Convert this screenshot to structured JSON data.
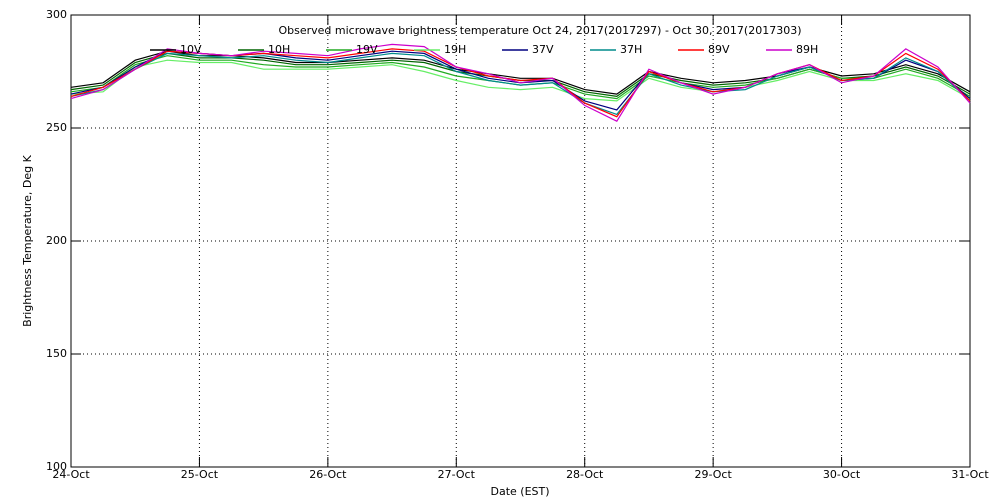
{
  "chart_data": {
    "type": "line",
    "title": "Observed microwave brightness temperature Oct 24, 2017(2017297) - Oct 30, 2017(2017303)",
    "x_label": "Date (EST)",
    "y_label": "Brightness Temperature, Deg K",
    "x": [
      0,
      0.25,
      0.5,
      0.75,
      1,
      1.25,
      1.5,
      1.75,
      2,
      2.25,
      2.5,
      2.75,
      3,
      3.25,
      3.5,
      3.75,
      4,
      4.25,
      4.5,
      4.75,
      5,
      5.25,
      5.5,
      5.75,
      6,
      6.25,
      6.5,
      6.75,
      7
    ],
    "xlim": [
      0,
      7
    ],
    "xticks": [
      {
        "value": 0,
        "label": "24-Oct"
      },
      {
        "value": 1,
        "label": "25-Oct"
      },
      {
        "value": 2,
        "label": "26-Oct"
      },
      {
        "value": 3,
        "label": "27-Oct"
      },
      {
        "value": 4,
        "label": "28-Oct"
      },
      {
        "value": 5,
        "label": "29-Oct"
      },
      {
        "value": 6,
        "label": "30-Oct"
      },
      {
        "value": 7,
        "label": "31-Oct"
      }
    ],
    "ylim": [
      100,
      300
    ],
    "yticks": [
      100,
      150,
      200,
      250,
      300
    ],
    "grid": true,
    "series": [
      {
        "name": "10V",
        "color": "#000000",
        "values": [
          268,
          270,
          280,
          284,
          282,
          282,
          281,
          279,
          279,
          280,
          281,
          280,
          276,
          274,
          272,
          272,
          267,
          265,
          275,
          272,
          270,
          271,
          273,
          277,
          273,
          274,
          278,
          274,
          266
        ]
      },
      {
        "name": "10H",
        "color": "#006400",
        "values": [
          267,
          269,
          279,
          283,
          281,
          281,
          280,
          278,
          278,
          279,
          280,
          279,
          275,
          273,
          271,
          271,
          266,
          264,
          274,
          271,
          269,
          270,
          272,
          276,
          272,
          273,
          277,
          273,
          265
        ]
      },
      {
        "name": "19V",
        "color": "#22aa22",
        "values": [
          266,
          268,
          278,
          282,
          280,
          280,
          278,
          277,
          277,
          278,
          279,
          277,
          273,
          271,
          269,
          270,
          265,
          263,
          273,
          270,
          268,
          269,
          272,
          276,
          272,
          272,
          276,
          272,
          264
        ]
      },
      {
        "name": "19H",
        "color": "#66ee66",
        "values": [
          265,
          266,
          277,
          280,
          279,
          279,
          276,
          276,
          276,
          277,
          278,
          275,
          271,
          268,
          267,
          268,
          263,
          262,
          272,
          268,
          266,
          268,
          271,
          275,
          271,
          271,
          274,
          271,
          263
        ]
      },
      {
        "name": "37V",
        "color": "#000080",
        "values": [
          265,
          268,
          277,
          284,
          283,
          282,
          283,
          281,
          280,
          282,
          284,
          283,
          276,
          272,
          270,
          271,
          262,
          258,
          275,
          270,
          267,
          268,
          274,
          277,
          271,
          272,
          280,
          275,
          263
        ]
      },
      {
        "name": "37H",
        "color": "#008b8b",
        "values": [
          264,
          267,
          276,
          283,
          282,
          281,
          282,
          280,
          279,
          281,
          283,
          282,
          275,
          271,
          269,
          270,
          261,
          256,
          274,
          269,
          266,
          267,
          273,
          277,
          271,
          272,
          281,
          275,
          262
        ]
      },
      {
        "name": "89V",
        "color": "#ff0000",
        "values": [
          264,
          268,
          276,
          284,
          283,
          282,
          283,
          282,
          281,
          283,
          285,
          284,
          277,
          273,
          271,
          272,
          261,
          255,
          275,
          270,
          266,
          268,
          274,
          278,
          271,
          273,
          283,
          276,
          262
        ]
      },
      {
        "name": "89H",
        "color": "#cc00cc",
        "values": [
          263,
          267,
          276,
          285,
          283,
          282,
          284,
          283,
          282,
          285,
          287,
          286,
          277,
          274,
          270,
          272,
          260,
          253,
          276,
          270,
          265,
          268,
          274,
          278,
          270,
          273,
          285,
          277,
          261
        ]
      }
    ]
  }
}
